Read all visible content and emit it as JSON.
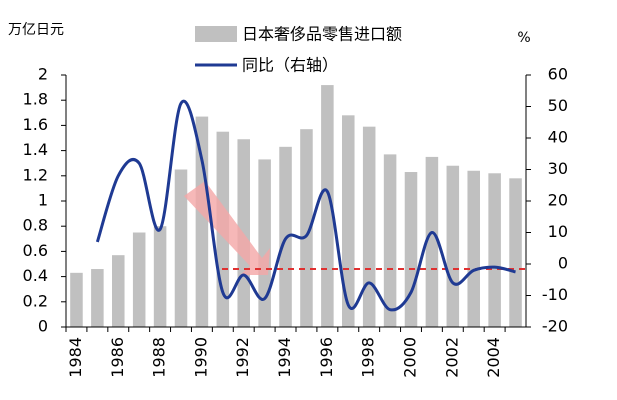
{
  "chart_data": {
    "type": "bar-line",
    "left_axis_label": "万亿日元",
    "right_axis_label": "%",
    "categories": [
      "1984",
      null,
      "1986",
      null,
      "1988",
      null,
      "1990",
      null,
      "1992",
      null,
      "1994",
      null,
      "1996",
      null,
      "1998",
      null,
      "2000",
      null,
      "2002",
      null,
      "2004",
      null
    ],
    "series": [
      {
        "name": "日本奢侈品零售进口额",
        "type": "bar",
        "color": "#c0c0c0",
        "values": [
          0.43,
          0.46,
          0.57,
          0.75,
          0.8,
          1.25,
          1.67,
          1.55,
          1.49,
          1.33,
          1.43,
          1.57,
          1.92,
          1.68,
          1.59,
          1.37,
          1.23,
          1.35,
          1.28,
          1.24,
          1.22,
          1.18
        ]
      },
      {
        "name": "同比（右轴）",
        "type": "line",
        "axis": "y2",
        "color": "#1f3a93",
        "values": [
          null,
          7,
          28,
          32,
          11,
          51,
          33,
          -9,
          -3.5,
          -11,
          8,
          9,
          23,
          -13,
          -6,
          -14.5,
          -9,
          10,
          -6,
          -2,
          -1,
          -2.5
        ]
      }
    ],
    "ylim": [
      0,
      2
    ],
    "yticks": [
      0,
      0.2,
      0.4,
      0.6,
      0.8,
      1,
      1.2,
      1.4,
      1.6,
      1.8,
      2
    ],
    "y2lim": [
      -20,
      60
    ],
    "y2ticks": [
      -20,
      -10,
      0,
      10,
      20,
      30,
      40,
      50,
      60
    ],
    "legend": "top"
  }
}
